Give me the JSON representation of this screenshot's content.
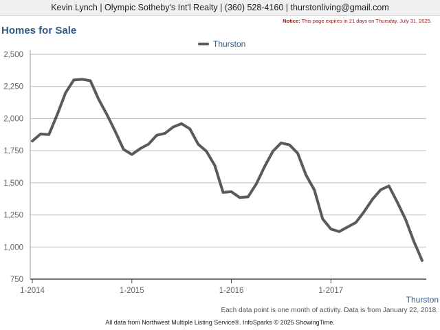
{
  "header": {
    "contact": "Kevin Lynch | Olympic Sotheby's Int'l Realty | (360) 528-4160 | thurstonliving@gmail.com",
    "notice_label": "Notice:",
    "notice_text": "This page expires in 21 days on Thursday, July 31, 2025."
  },
  "page_title": "Homes for Sale",
  "colors": {
    "line": "#565c5a",
    "title": "#2f5b86",
    "grid": "#bbbbbb"
  },
  "chart_data": {
    "type": "line",
    "title": "Homes for Sale",
    "legend_position": "top-center",
    "grid": true,
    "x_tick_labels": [
      "1-2014",
      "1-2015",
      "1-2016",
      "1-2017"
    ],
    "y_tick_labels": [
      "750",
      "1,000",
      "1,250",
      "1,500",
      "1,750",
      "2,000",
      "2,250",
      "2,500"
    ],
    "ylim": [
      750,
      2500
    ],
    "series": [
      {
        "name": "Thurston",
        "x": [
          "2014-01",
          "2014-02",
          "2014-03",
          "2014-04",
          "2014-05",
          "2014-06",
          "2014-07",
          "2014-08",
          "2014-09",
          "2014-10",
          "2014-11",
          "2014-12",
          "2015-01",
          "2015-02",
          "2015-03",
          "2015-04",
          "2015-05",
          "2015-06",
          "2015-07",
          "2015-08",
          "2015-09",
          "2015-10",
          "2015-11",
          "2015-12",
          "2016-01",
          "2016-02",
          "2016-03",
          "2016-04",
          "2016-05",
          "2016-06",
          "2016-07",
          "2016-08",
          "2016-09",
          "2016-10",
          "2016-11",
          "2016-12",
          "2017-01",
          "2017-02",
          "2017-03",
          "2017-04",
          "2017-05",
          "2017-06",
          "2017-07",
          "2017-08",
          "2017-09",
          "2017-10",
          "2017-11",
          "2017-12"
        ],
        "values": [
          1825,
          1880,
          1875,
          2030,
          2200,
          2300,
          2305,
          2295,
          2150,
          2030,
          1900,
          1760,
          1720,
          1765,
          1800,
          1870,
          1885,
          1935,
          1960,
          1920,
          1800,
          1745,
          1635,
          1425,
          1430,
          1385,
          1390,
          1490,
          1625,
          1745,
          1810,
          1795,
          1730,
          1560,
          1445,
          1220,
          1140,
          1120,
          1155,
          1190,
          1275,
          1370,
          1445,
          1475,
          1350,
          1215,
          1045,
          895
        ]
      }
    ]
  },
  "series_end_label": "Thurston",
  "footer": {
    "note": "Each data point is one month of activity. Data is from January 22, 2018.",
    "source": "All data from Northwest Multiple Listing Service®. InfoSparks © 2025 ShowingTime."
  }
}
